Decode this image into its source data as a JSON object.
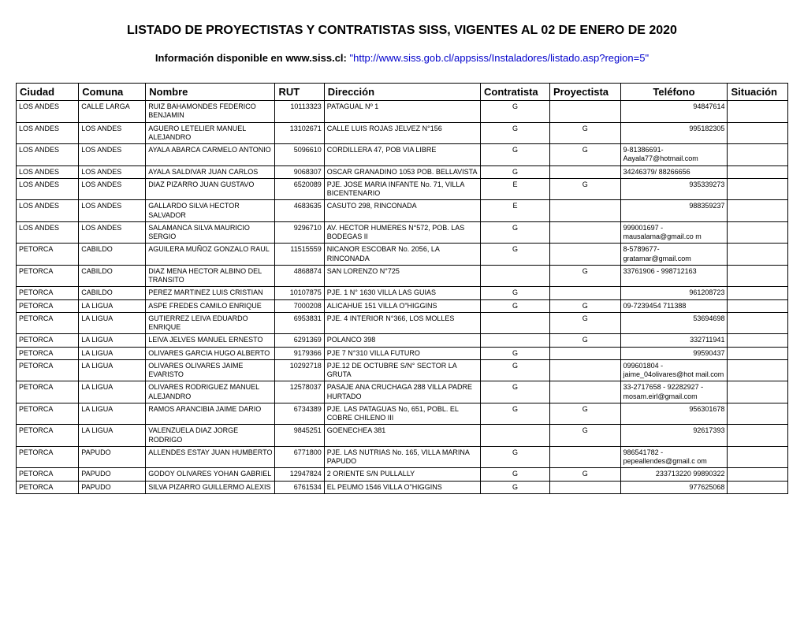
{
  "header": {
    "title": "LISTADO DE PROYECTISTAS Y CONTRATISTAS SISS, VIGENTES AL 02 DE ENERO DE 2020",
    "subtitle_prefix": "Información disponible en www.siss.cl:   ",
    "subtitle_link": "\"http://www.siss.gob.cl/appsiss/Instaladores/listado.asp?region=5\""
  },
  "table": {
    "columns": [
      {
        "label": "Ciudad",
        "align": "left"
      },
      {
        "label": "Comuna",
        "align": "left"
      },
      {
        "label": "Nombre",
        "align": "left"
      },
      {
        "label": "RUT",
        "align": "left"
      },
      {
        "label": "Dirección",
        "align": "left"
      },
      {
        "label": "Contratista",
        "align": "left"
      },
      {
        "label": "Proyectista",
        "align": "left"
      },
      {
        "label": "Teléfono",
        "align": "center"
      },
      {
        "label": "Situación",
        "align": "left"
      }
    ],
    "rows": [
      [
        "LOS ANDES",
        "CALLE LARGA",
        "RUIZ BAHAMONDES FEDERICO BENJAMIN",
        "10113323",
        "PATAGUAL Nº 1",
        "G",
        "",
        "94847614",
        ""
      ],
      [
        "LOS ANDES",
        "LOS ANDES",
        "AGUERO LETELIER MANUEL ALEJANDRO",
        "13102671",
        "CALLE LUIS ROJAS JELVEZ N°156",
        "G",
        "G",
        "995182305",
        ""
      ],
      [
        "LOS ANDES",
        "LOS ANDES",
        "AYALA ABARCA CARMELO ANTONIO",
        "5096610",
        "CORDILLERA 47, POB VIA LIBRE",
        "G",
        "G",
        "9-81386691- Aayala77@hotmail.com",
        ""
      ],
      [
        "LOS ANDES",
        "LOS ANDES",
        "AYALA SALDIVAR JUAN CARLOS",
        "9068307",
        "OSCAR GRANADINO 1053 POB. BELLAVISTA",
        "G",
        "",
        "34246379/ 88266656",
        ""
      ],
      [
        "LOS ANDES",
        "LOS ANDES",
        "DIAZ PIZARRO JUAN GUSTAVO",
        "6520089",
        "PJE. JOSE MARIA INFANTE No. 71, VILLA BICENTENARIO",
        "E",
        "G",
        "935339273",
        ""
      ],
      [
        "LOS ANDES",
        "LOS ANDES",
        "GALLARDO SILVA HECTOR SALVADOR",
        "4683635",
        "CASUTO 298, RINCONADA",
        "E",
        "",
        "988359237",
        ""
      ],
      [
        "LOS ANDES",
        "LOS ANDES",
        "SALAMANCA SILVA MAURICIO SERGIO",
        "9296710",
        "AV. HECTOR HUMERES N°572, POB. LAS BODEGAS II",
        "G",
        "",
        "999001697 - mausalama@gmail.co m",
        ""
      ],
      [
        "PETORCA",
        "CABILDO",
        "AGUILERA MUÑOZ GONZALO RAUL",
        "11515559",
        "NICANOR ESCOBAR No. 2056, LA RINCONADA",
        "G",
        "",
        "8-5789677- gratamar@gmail.com",
        ""
      ],
      [
        "PETORCA",
        "CABILDO",
        "DIAZ MENA HECTOR ALBINO DEL TRANSITO",
        "4868874",
        "SAN LORENZO N°725",
        "",
        "G",
        "33761906 - 998712163",
        ""
      ],
      [
        "PETORCA",
        "CABILDO",
        "PEREZ MARTINEZ LUIS CRISTIAN",
        "10107875",
        "PJE. 1 N° 1630 VILLA LAS GUIAS",
        "G",
        "",
        "961208723",
        ""
      ],
      [
        "PETORCA",
        "LA LIGUA",
        "ASPE FREDES CAMILO ENRIQUE",
        "7000208",
        "ALICAHUE 151 VILLA O\"HIGGINS",
        "G",
        "G",
        "09-7239454 711388",
        ""
      ],
      [
        "PETORCA",
        "LA LIGUA",
        "GUTIERREZ LEIVA EDUARDO ENRIQUE",
        "6953831",
        "PJE. 4 INTERIOR N°366, LOS MOLLES",
        "",
        "G",
        "53694698",
        ""
      ],
      [
        "PETORCA",
        "LA LIGUA",
        "LEIVA JELVES MANUEL ERNESTO",
        "6291369",
        "POLANCO 398",
        "",
        "G",
        "332711941",
        ""
      ],
      [
        "PETORCA",
        "LA LIGUA",
        "OLIVARES GARCIA HUGO ALBERTO",
        "9179366",
        "PJE 7 N°310 VILLA FUTURO",
        "G",
        "",
        "99590437",
        ""
      ],
      [
        "PETORCA",
        "LA LIGUA",
        "OLIVARES OLIVARES JAIME EVARISTO",
        "10292718",
        "PJE.12 DE OCTUBRE S/N° SECTOR LA GRUTA",
        "G",
        "",
        "099601804 - jaime_04olivares@hot mail.com",
        ""
      ],
      [
        "PETORCA",
        "LA LIGUA",
        "OLIVARES RODRIGUEZ MANUEL ALEJANDRO",
        "12578037",
        "PASAJE ANA CRUCHAGA 288 VILLA PADRE HURTADO",
        "G",
        "",
        "33-2717658 - 92282927 - mosam.eirl@gmail.com",
        ""
      ],
      [
        "PETORCA",
        "LA LIGUA",
        "RAMOS ARANCIBIA JAIME DARIO",
        "6734389",
        "PJE. LAS PATAGUAS No, 651, POBL. EL COBRE CHILENO III",
        "G",
        "G",
        "956301678",
        ""
      ],
      [
        "PETORCA",
        "LA LIGUA",
        "VALENZUELA DIAZ JORGE RODRIGO",
        "9845251",
        "GOENECHEA 381",
        "",
        "G",
        "92617393",
        ""
      ],
      [
        "PETORCA",
        "PAPUDO",
        "ALLENDES ESTAY JUAN HUMBERTO",
        "6771800",
        "PJE. LAS NUTRIAS No. 165, VILLA MARINA PAPUDO",
        "G",
        "",
        "986541782 - pepeallendes@gmail.c om",
        ""
      ],
      [
        "PETORCA",
        "PAPUDO",
        "GODOY OLIVARES YOHAN GABRIEL",
        "12947824",
        "2 ORIENTE S/N PULLALLY",
        "G",
        "G",
        "233713220 99890322",
        ""
      ],
      [
        "PETORCA",
        "PAPUDO",
        "SILVA PIZARRO GUILLERMO ALEXIS",
        "6761534",
        "EL PEUMO 1546 VILLA O\"HIGGINS",
        "G",
        "",
        "977625068",
        ""
      ]
    ],
    "cell_align": [
      "left",
      "left",
      "left",
      "right",
      "left",
      "center",
      "center",
      "left",
      "left"
    ],
    "telefono_right_align_rows": [
      0,
      1,
      4,
      5,
      9,
      11,
      12,
      13,
      16,
      17,
      19,
      20
    ]
  },
  "styling": {
    "background_color": "#ffffff",
    "border_color": "#000000",
    "title_fontsize": 16,
    "header_fontsize": 13,
    "cell_fontsize": 9,
    "link_color": "#0000cc"
  }
}
